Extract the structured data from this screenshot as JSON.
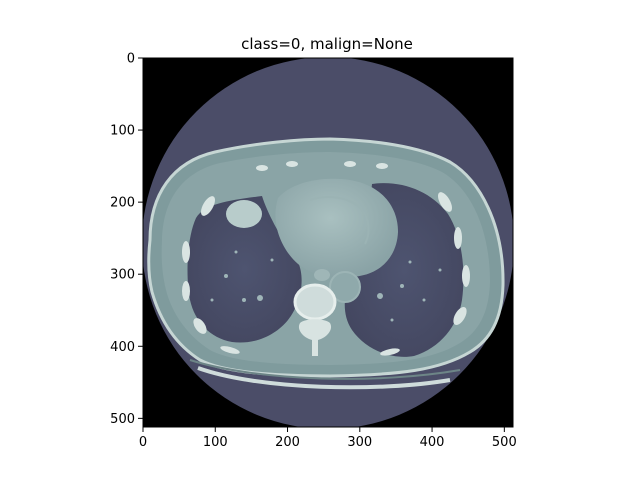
{
  "figure": {
    "title": "class=0, malign=None",
    "image_subject": "axial chest CT slice",
    "colormap": "bone",
    "colors": {
      "background": "#000000",
      "fov": "#4b4d68",
      "tissue": "#8fa9ab",
      "bone": "#dfe8e6",
      "lung": "#474a66"
    },
    "axes": {
      "x_range": [
        0,
        512
      ],
      "y_range": [
        0,
        512
      ],
      "y_inverted": true,
      "x_ticks": [
        0,
        100,
        200,
        300,
        400,
        500
      ],
      "y_ticks": [
        0,
        100,
        200,
        300,
        400,
        500
      ]
    }
  }
}
